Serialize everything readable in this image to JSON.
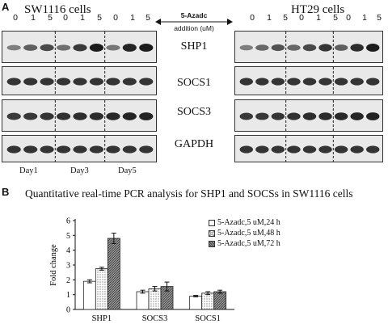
{
  "panel_a": {
    "letter": "A",
    "left_title": "SW1116 cells",
    "right_title": "HT29 cells",
    "treatment_label": "5-Azadc",
    "treatment_sub": "addition (uM)",
    "doses": [
      "0",
      "1",
      "5",
      "0",
      "1",
      "5",
      "0",
      "1",
      "5"
    ],
    "proteins": [
      "SHP1",
      "SOCS1",
      "SOCS3",
      "GAPDH"
    ],
    "days": [
      "Day1",
      "Day3",
      "Day5"
    ]
  },
  "panel_b": {
    "letter": "B",
    "title": "Quantitative real-time PCR analysis for SHP1 and SOCSs in SW1116 cells"
  },
  "chart_data": {
    "type": "bar",
    "title": "Quantitative real-time PCR analysis for SHP1 and SOCSs in SW1116 cells",
    "xlabel": "",
    "ylabel": "Fold change",
    "categories": [
      "SHP1",
      "SOCS3",
      "SOCS1"
    ],
    "series": [
      {
        "name": "5-Azadc,5 uM,24 h",
        "values": [
          1.9,
          1.2,
          0.9
        ],
        "errors": [
          0.1,
          0.1,
          0.05
        ],
        "pattern": "white"
      },
      {
        "name": "5-Azadc,5 uM,48 h",
        "values": [
          2.75,
          1.4,
          1.1
        ],
        "errors": [
          0.1,
          0.15,
          0.1
        ],
        "pattern": "dotted"
      },
      {
        "name": "5-Azadc,5 uM,72 h",
        "values": [
          4.8,
          1.55,
          1.2
        ],
        "errors": [
          0.35,
          0.3,
          0.1
        ],
        "pattern": "hatched"
      }
    ],
    "ylim": [
      0,
      6
    ],
    "yticks": [
      "0",
      "1",
      "2",
      "3",
      "4",
      "5",
      "6"
    ],
    "grid": false,
    "legend_position": "top-right"
  }
}
